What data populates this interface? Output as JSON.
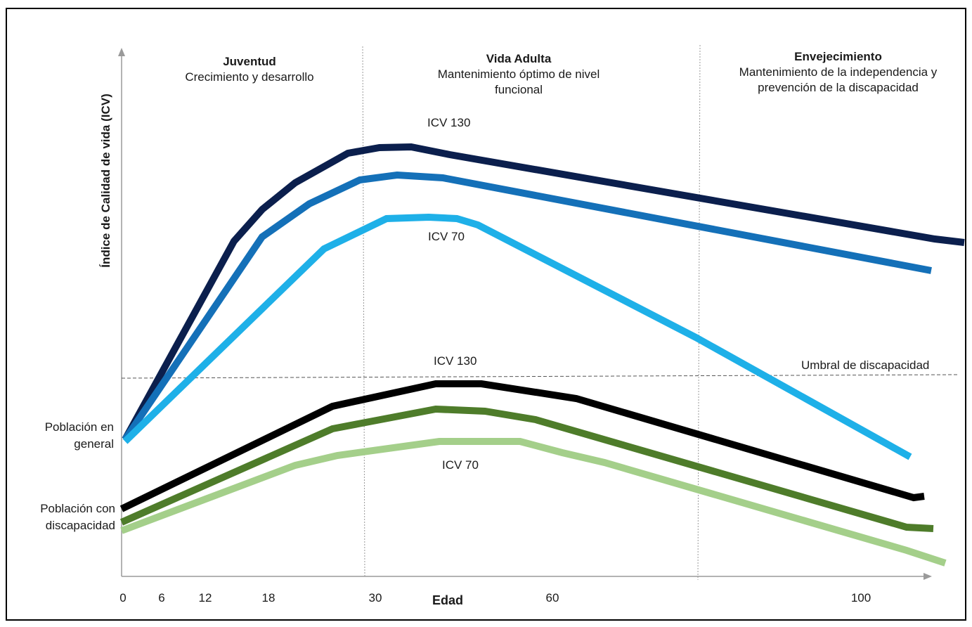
{
  "chart_data": {
    "type": "line",
    "title": "",
    "xlabel": "Edad",
    "ylabel": "Índice de Calidad de vida (ICV)",
    "x_ticks": [
      0,
      6,
      12,
      18,
      30,
      60,
      100
    ],
    "threshold": {
      "label": "Umbral de discapacidad"
    },
    "stages": [
      {
        "title": "Juventud",
        "subtitle": "Crecimiento  y desarrollo"
      },
      {
        "title": "Vida Adulta",
        "subtitle": "Mantenimiento  óptimo de nivel funcional"
      },
      {
        "title": "Envejecimiento",
        "subtitle": "Mantenimiento  de la independencia  y prevención  de la discapacidad"
      }
    ],
    "start_labels": {
      "general": "Población en general",
      "disability": "Población con discapacidad"
    },
    "annotations": {
      "general_icv130": "ICV 130",
      "general_icv70": "ICV 70",
      "disability_icv130": "ICV 130",
      "disability_icv70": "ICV 70"
    },
    "series": [
      {
        "group": "general",
        "color": "#0b1f4d"
      },
      {
        "group": "general",
        "color": "#1470b8"
      },
      {
        "group": "general",
        "color": "#1eb0e8"
      },
      {
        "group": "disability",
        "color": "#000000"
      },
      {
        "group": "disability",
        "color": "#4e7c2a"
      },
      {
        "group": "disability",
        "color": "#a4cf8a"
      }
    ]
  }
}
